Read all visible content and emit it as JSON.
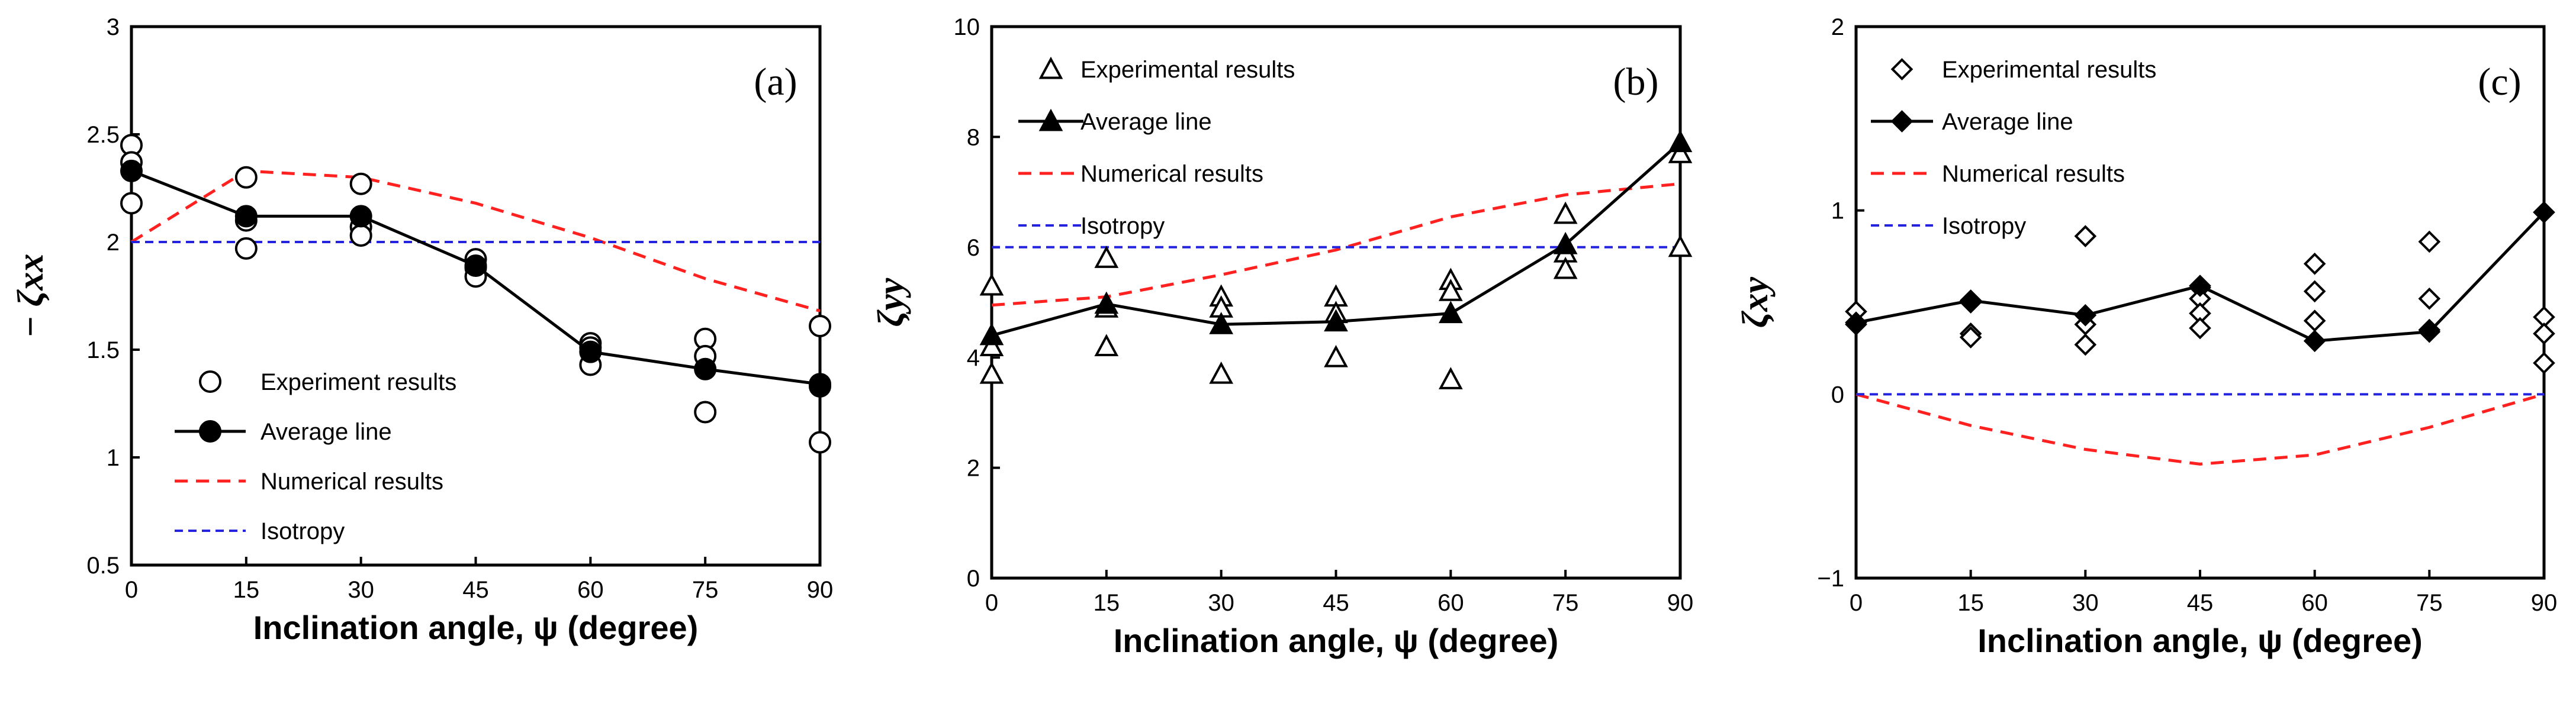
{
  "figure": {
    "panels": [
      {
        "tag": "(a)",
        "ylabel": "− ζxx"
      },
      {
        "tag": "(b)",
        "ylabel": "ζyy"
      },
      {
        "tag": "(c)",
        "ylabel": "ζxy"
      }
    ]
  },
  "chart_data": [
    {
      "type": "scatter",
      "panel": "(a)",
      "xlabel": "Inclination angle, ψ (degree)",
      "ylabel": "− ζxx",
      "xlim": [
        0,
        90
      ],
      "ylim": [
        0.5,
        3
      ],
      "xticks": [
        "0",
        "15",
        "30",
        "45",
        "60",
        "75",
        "90"
      ],
      "yticks": [
        "0.5",
        "1",
        "1.5",
        "2",
        "2.5",
        "3"
      ],
      "legend_position": "bottom-left",
      "series": [
        {
          "name": "Experiment results",
          "style": "open-circle",
          "points": [
            [
              0,
              2.45
            ],
            [
              0,
              2.37
            ],
            [
              0,
              2.18
            ],
            [
              15,
              2.3
            ],
            [
              15,
              2.1
            ],
            [
              15,
              1.97
            ],
            [
              30,
              2.27
            ],
            [
              30,
              2.07
            ],
            [
              30,
              2.03
            ],
            [
              45,
              1.92
            ],
            [
              45,
              1.88
            ],
            [
              45,
              1.84
            ],
            [
              60,
              1.53
            ],
            [
              60,
              1.51
            ],
            [
              60,
              1.43
            ],
            [
              75,
              1.55
            ],
            [
              75,
              1.47
            ],
            [
              75,
              1.21
            ],
            [
              90,
              1.61
            ],
            [
              90,
              1.33
            ],
            [
              90,
              1.07
            ]
          ]
        },
        {
          "name": "Average line",
          "style": "line-filled-circle",
          "points": [
            [
              0,
              2.33
            ],
            [
              15,
              2.12
            ],
            [
              30,
              2.12
            ],
            [
              45,
              1.89
            ],
            [
              60,
              1.49
            ],
            [
              75,
              1.41
            ],
            [
              90,
              1.34
            ]
          ]
        },
        {
          "name": "Numerical results",
          "style": "red-dashed",
          "points": [
            [
              0,
              2.0
            ],
            [
              15,
              2.33
            ],
            [
              30,
              2.3
            ],
            [
              45,
              2.18
            ],
            [
              60,
              2.02
            ],
            [
              75,
              1.83
            ],
            [
              90,
              1.68
            ]
          ]
        },
        {
          "name": "Isotropy",
          "style": "blue-dashed",
          "points": [
            [
              0,
              2.0
            ],
            [
              90,
              2.0
            ]
          ]
        }
      ]
    },
    {
      "type": "scatter",
      "panel": "(b)",
      "xlabel": "Inclination angle, ψ (degree)",
      "ylabel": "ζyy",
      "xlim": [
        0,
        90
      ],
      "ylim": [
        0,
        10
      ],
      "xticks": [
        "0",
        "15",
        "30",
        "45",
        "60",
        "75",
        "90"
      ],
      "yticks": [
        "0",
        "2",
        "4",
        "6",
        "8",
        "10"
      ],
      "legend_position": "top-left",
      "series": [
        {
          "name": "Experimental results",
          "style": "open-triangle",
          "points": [
            [
              0,
              5.3
            ],
            [
              0,
              4.2
            ],
            [
              0,
              3.7
            ],
            [
              15,
              5.8
            ],
            [
              15,
              4.9
            ],
            [
              15,
              4.2
            ],
            [
              30,
              5.1
            ],
            [
              30,
              4.9
            ],
            [
              30,
              3.7
            ],
            [
              45,
              5.1
            ],
            [
              45,
              4.8
            ],
            [
              45,
              4.0
            ],
            [
              60,
              5.4
            ],
            [
              60,
              5.2
            ],
            [
              60,
              3.6
            ],
            [
              75,
              6.6
            ],
            [
              75,
              5.9
            ],
            [
              75,
              5.6
            ],
            [
              90,
              7.7
            ],
            [
              90,
              6.0
            ]
          ]
        },
        {
          "name": "Average line",
          "style": "line-filled-triangle",
          "points": [
            [
              0,
              4.4
            ],
            [
              15,
              4.97
            ],
            [
              30,
              4.6
            ],
            [
              45,
              4.65
            ],
            [
              60,
              4.8
            ],
            [
              75,
              6.05
            ],
            [
              90,
              7.9
            ]
          ]
        },
        {
          "name": "Numerical results",
          "style": "red-dashed",
          "points": [
            [
              0,
              4.95
            ],
            [
              15,
              5.1
            ],
            [
              30,
              5.5
            ],
            [
              45,
              5.95
            ],
            [
              60,
              6.55
            ],
            [
              75,
              6.95
            ],
            [
              90,
              7.15
            ]
          ]
        },
        {
          "name": "Isotropy",
          "style": "blue-dashed",
          "points": [
            [
              0,
              6.0
            ],
            [
              90,
              6.0
            ]
          ]
        }
      ]
    },
    {
      "type": "scatter",
      "panel": "(c)",
      "xlabel": "Inclination angle, ψ (degree)",
      "ylabel": "ζxy",
      "xlim": [
        0,
        90
      ],
      "ylim": [
        -1,
        2
      ],
      "xticks": [
        "0",
        "15",
        "30",
        "45",
        "60",
        "75",
        "90"
      ],
      "yticks": [
        "−1",
        "0",
        "1",
        "2"
      ],
      "legend_position": "top-left",
      "series": [
        {
          "name": "Experimental results",
          "style": "open-diamond",
          "points": [
            [
              0,
              0.45
            ],
            [
              0,
              0.38
            ],
            [
              15,
              0.5
            ],
            [
              15,
              0.33
            ],
            [
              15,
              0.31
            ],
            [
              30,
              0.86
            ],
            [
              30,
              0.38
            ],
            [
              30,
              0.27
            ],
            [
              45,
              0.58
            ],
            [
              45,
              0.52
            ],
            [
              45,
              0.44
            ],
            [
              45,
              0.36
            ],
            [
              60,
              0.71
            ],
            [
              60,
              0.56
            ],
            [
              60,
              0.4
            ],
            [
              75,
              0.83
            ],
            [
              75,
              0.52
            ],
            [
              75,
              0.35
            ],
            [
              90,
              0.42
            ],
            [
              90,
              0.33
            ],
            [
              90,
              0.17
            ]
          ]
        },
        {
          "name": "Average line",
          "style": "line-filled-diamond",
          "points": [
            [
              0,
              0.39
            ],
            [
              15,
              0.51
            ],
            [
              30,
              0.43
            ],
            [
              45,
              0.59
            ],
            [
              60,
              0.29
            ],
            [
              75,
              0.34
            ],
            [
              90,
              0.99
            ]
          ]
        },
        {
          "name": "Numerical results",
          "style": "red-dashed",
          "points": [
            [
              0,
              0.0
            ],
            [
              15,
              -0.17
            ],
            [
              30,
              -0.3
            ],
            [
              45,
              -0.38
            ],
            [
              60,
              -0.33
            ],
            [
              75,
              -0.18
            ],
            [
              90,
              0.0
            ]
          ]
        },
        {
          "name": "Isotropy",
          "style": "blue-dashed",
          "points": [
            [
              0,
              0.0
            ],
            [
              90,
              0.0
            ]
          ]
        }
      ]
    }
  ]
}
